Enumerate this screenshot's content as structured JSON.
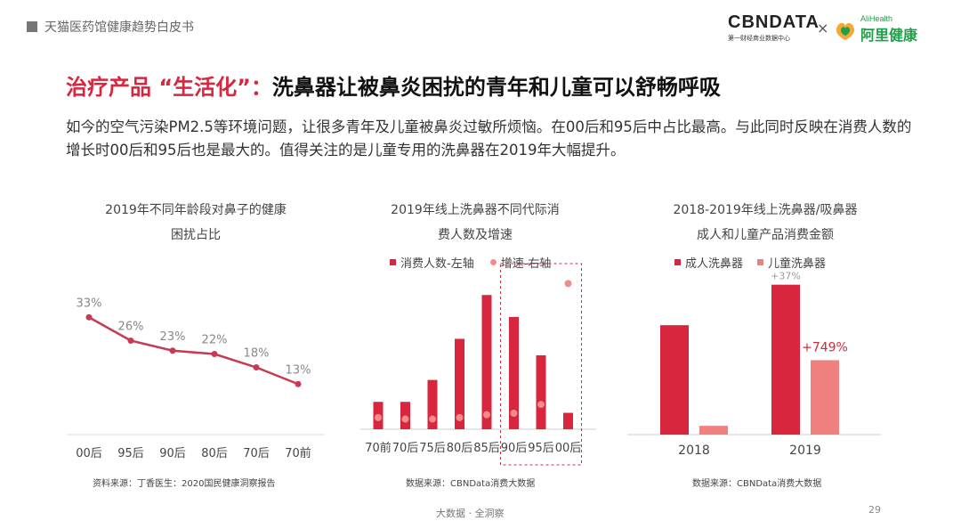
{
  "header": {
    "doc_title": "天猫医药馆健康趋势白皮书"
  },
  "logos": {
    "cbn_main": "CBNDATA",
    "cbn_sub": "第一财经商业数据中心",
    "separator": "×",
    "ali_en": "AliHealth",
    "ali_cn": "阿里健康"
  },
  "title": {
    "highlight": "治疗产品 “生活化”：",
    "main": "洗鼻器让被鼻炎困扰的青年和儿童可以舒畅呼吸"
  },
  "description": "如今的空气污染PM2.5等环境问题，让很多青年及儿童被鼻炎过敏所烦恼。在00后和95后中占比最高。与此同时反映在消费人数的增长时00后和95后也是最大的。值得关注的是儿童专用的洗鼻器在2019年大幅提升。",
  "colors": {
    "accent": "#d7263d",
    "accent_light": "#f08080",
    "line": "#c73a52",
    "dot_light": "#f28b8b"
  },
  "chart_data": [
    {
      "type": "line",
      "title_line1": "2019年不同年龄段对鼻子的健康",
      "title_line2": "困扰占比",
      "categories": [
        "00后",
        "95后",
        "90后",
        "80后",
        "70后",
        "70前"
      ],
      "values": [
        33,
        26,
        23,
        22,
        18,
        13
      ],
      "value_labels": [
        "33%",
        "26%",
        "23%",
        "22%",
        "18%",
        "13%"
      ],
      "ylim": [
        0,
        40
      ],
      "source": "资料来源：丁香医生：2020国民健康洞察报告"
    },
    {
      "type": "bar",
      "title_line1": "2019年线上洗鼻器不同代际消",
      "title_line2": "费人数及增速",
      "categories": [
        "70前",
        "70后",
        "75后",
        "80后",
        "85后",
        "90后",
        "95后",
        "00后"
      ],
      "series": [
        {
          "name": "消费人数-左轴",
          "values": [
            10,
            10,
            18,
            33,
            49,
            41,
            27,
            6
          ]
        },
        {
          "name": "增速-右轴",
          "values": [
            8,
            7,
            7,
            8,
            10,
            11,
            17,
            100
          ]
        }
      ],
      "y_left_max": 52,
      "y_right_max": 110,
      "highlight_categories": [
        "90后",
        "95后",
        "00后"
      ],
      "source": "数据来源：CBNData消费大数据"
    },
    {
      "type": "bar",
      "title_line1": "2018-2019年线上洗鼻器/吸鼻器",
      "title_line2": "成人和儿童产品消费金额",
      "categories": [
        "2018",
        "2019"
      ],
      "series": [
        {
          "name": "成人洗鼻器",
          "values": [
            100,
            137
          ]
        },
        {
          "name": "儿童洗鼻器",
          "values": [
            8,
            68
          ]
        }
      ],
      "ymax": 140,
      "annotations": {
        "adult_growth": "+37%",
        "child_growth": "+749%"
      },
      "source": "数据来源：CBNData消费大数据"
    }
  ],
  "footer": {
    "text": "大数据 · 全洞察",
    "page": "29"
  }
}
